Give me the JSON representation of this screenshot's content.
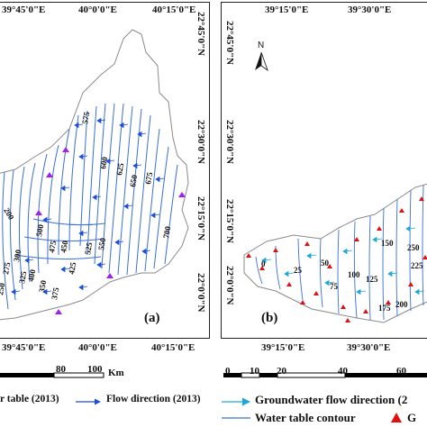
{
  "panel_a": {
    "label": "(a)",
    "top_ticks": [
      "39°45'0\"E",
      "40°0'0\"E",
      "40°15'0\"E"
    ],
    "bottom_ticks": [
      "39°45'0\"E",
      "40°0'0\"E",
      "40°15'0\"E"
    ],
    "right_ticks": [
      "22°45'0\"N",
      "22°30'0\"N",
      "22°15'0\"N",
      "22°0'0\"N"
    ],
    "contour_labels": [
      "575",
      "600",
      "625",
      "650",
      "675",
      "700",
      "500",
      "475",
      "450",
      "425",
      "400",
      "375",
      "350",
      "325",
      "300",
      "275",
      "250",
      "525",
      "550",
      "200"
    ],
    "scale": {
      "ticks": [
        "80",
        "100"
      ],
      "unit": "Km"
    }
  },
  "panel_b": {
    "label": "(b)",
    "top_ticks": [
      "39°15'0\"E",
      "39°30'0\"E"
    ],
    "bottom_ticks": [
      "39°15'0\"E",
      "39°30'0\"E"
    ],
    "left_ticks": [
      "22°45'0\"N",
      "22°30'0\"N",
      "22°15'0\"N",
      "22°0'0\"N"
    ],
    "north_label": "N",
    "contour_labels": [
      "0",
      "25",
      "50",
      "75",
      "100",
      "125",
      "150",
      "175",
      "200",
      "225",
      "250"
    ],
    "scale": {
      "ticks": [
        "0",
        "10",
        "20",
        "40",
        "60"
      ]
    }
  },
  "legend": {
    "water_table_2013": "r table (2013)",
    "flow_direction_2013": "Flow direction (2013)",
    "gw_flow_direction": "Groundwater flow direction (2",
    "water_table_contour": "Water table contour",
    "gw_wells": "G"
  },
  "colors": {
    "contour": "#3a6fd6",
    "arrow": "#1d4fd8",
    "cyan_arrow": "#1ba9d8",
    "boundary": "#8a8a8a",
    "well_purple": "#a020f0",
    "well_red": "#e01010"
  }
}
